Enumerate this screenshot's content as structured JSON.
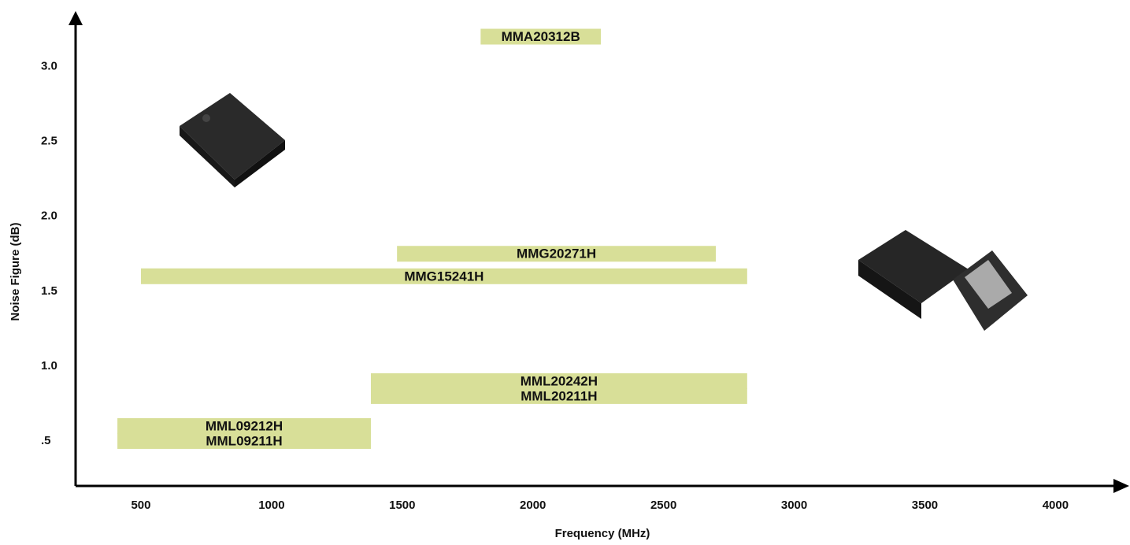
{
  "chart_data": {
    "type": "range-bar",
    "x_label": "Frequency (MHz)",
    "y_label": "Noise Figure (dB)",
    "xlim": [
      250,
      4270
    ],
    "ylim": [
      0.2,
      3.35
    ],
    "xticks": [
      500,
      1000,
      1500,
      2000,
      2500,
      3000,
      3500,
      4000
    ],
    "yticks": [
      {
        "value": 0.5,
        "label": ".5"
      },
      {
        "value": 1,
        "label": "1.0"
      },
      1.5,
      {
        "value": 2,
        "label": "2.0"
      },
      2.5,
      {
        "value": 3,
        "label": "3.0"
      }
    ],
    "color": "#d8df98",
    "bars": [
      {
        "name": "MMA20312B",
        "start": 1800,
        "end": 2260,
        "value": 3.2
      },
      {
        "name": "MMG20271H",
        "start": 1480,
        "end": 2700,
        "value": 1.75
      },
      {
        "name": "MMG15241H",
        "start": 500,
        "end": 2820,
        "value": 1.6
      },
      {
        "name": "MML20242H",
        "start": 1380,
        "end": 2820,
        "value": 0.9
      },
      {
        "name": "MML20211H",
        "start": 1380,
        "end": 2820,
        "value": 0.8
      },
      {
        "name": "MML09212H",
        "start": 410,
        "end": 1380,
        "value": 0.6
      },
      {
        "name": "MML09211H",
        "start": 410,
        "end": 1380,
        "value": 0.5
      }
    ]
  }
}
